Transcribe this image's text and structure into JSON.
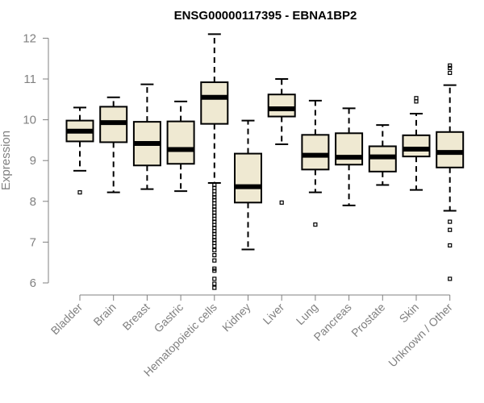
{
  "chart_data": {
    "type": "boxplot",
    "title": "ENSG00000117395 - EBNA1BP2",
    "xlabel": "",
    "ylabel": "Expression",
    "ylim": [
      5.7,
      12.3
    ],
    "yticks": [
      6,
      7,
      8,
      9,
      10,
      11,
      12
    ],
    "grid": false,
    "colors": {
      "box_fill": "#EFE9D2",
      "median": "#000000",
      "axis": "#808080",
      "text": "#808080"
    },
    "categories": [
      "Bladder",
      "Brain",
      "Breast",
      "Gastric",
      "Hematopoietic cells",
      "Kidney",
      "Liver",
      "Lung",
      "Pancreas",
      "Prostate",
      "Skin",
      "Unknown / Other"
    ],
    "boxes": [
      {
        "category": "Bladder",
        "whisker_low": 8.75,
        "q1": 9.47,
        "median": 9.72,
        "q3": 9.98,
        "whisker_high": 10.3,
        "outliers": [
          8.22
        ]
      },
      {
        "category": "Brain",
        "whisker_low": 8.22,
        "q1": 9.45,
        "median": 9.93,
        "q3": 10.32,
        "whisker_high": 10.55,
        "outliers": []
      },
      {
        "category": "Breast",
        "whisker_low": 8.3,
        "q1": 8.88,
        "median": 9.42,
        "q3": 9.95,
        "whisker_high": 10.87,
        "outliers": []
      },
      {
        "category": "Gastric",
        "whisker_low": 8.25,
        "q1": 8.92,
        "median": 9.27,
        "q3": 9.96,
        "whisker_high": 10.45,
        "outliers": []
      },
      {
        "category": "Hematopoietic cells",
        "whisker_low": 8.45,
        "q1": 9.9,
        "median": 10.55,
        "q3": 10.92,
        "whisker_high": 12.1,
        "outliers": [
          8.4,
          8.33,
          8.25,
          8.17,
          8.1,
          8.03,
          7.95,
          7.87,
          7.8,
          7.72,
          7.65,
          7.57,
          7.5,
          7.42,
          7.35,
          7.27,
          7.2,
          7.12,
          7.05,
          6.98,
          6.9,
          6.8,
          6.68,
          6.55,
          6.35,
          6.3,
          6.1,
          5.98,
          5.88
        ]
      },
      {
        "category": "Kidney",
        "whisker_low": 6.82,
        "q1": 7.97,
        "median": 8.36,
        "q3": 9.17,
        "whisker_high": 9.98,
        "outliers": []
      },
      {
        "category": "Liver",
        "whisker_low": 9.4,
        "q1": 10.08,
        "median": 10.27,
        "q3": 10.62,
        "whisker_high": 11.0,
        "outliers": [
          7.97
        ]
      },
      {
        "category": "Lung",
        "whisker_low": 8.22,
        "q1": 8.78,
        "median": 9.13,
        "q3": 9.63,
        "whisker_high": 10.47,
        "outliers": [
          7.43
        ]
      },
      {
        "category": "Pancreas",
        "whisker_low": 7.9,
        "q1": 8.9,
        "median": 9.08,
        "q3": 9.67,
        "whisker_high": 10.28,
        "outliers": []
      },
      {
        "category": "Prostate",
        "whisker_low": 8.4,
        "q1": 8.73,
        "median": 9.09,
        "q3": 9.35,
        "whisker_high": 9.87,
        "outliers": []
      },
      {
        "category": "Skin",
        "whisker_low": 8.28,
        "q1": 9.1,
        "median": 9.28,
        "q3": 9.62,
        "whisker_high": 10.15,
        "outliers": [
          10.45,
          10.53
        ]
      },
      {
        "category": "Unknown / Other",
        "whisker_low": 7.77,
        "q1": 8.83,
        "median": 9.2,
        "q3": 9.7,
        "whisker_high": 10.85,
        "outliers": [
          7.5,
          7.3,
          6.92,
          6.1,
          11.15,
          11.27,
          11.33
        ]
      }
    ]
  }
}
